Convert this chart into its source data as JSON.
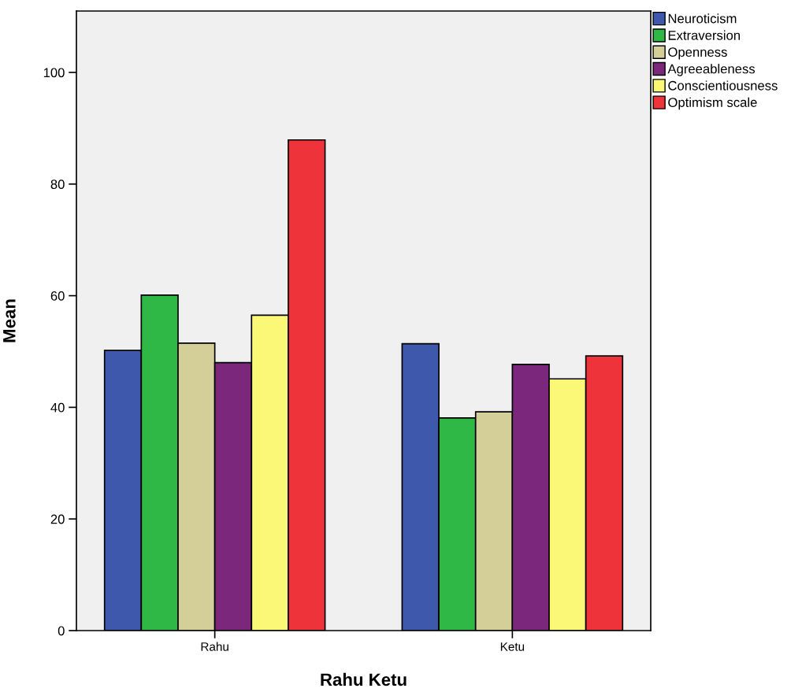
{
  "chart_data": {
    "type": "bar",
    "xlabel": "Rahu Ketu",
    "ylabel": "Mean",
    "categories": [
      "Rahu",
      "Ketu"
    ],
    "series": [
      {
        "name": "Neuroticism",
        "color": "#3e58ac",
        "values": [
          50.2,
          51.4
        ]
      },
      {
        "name": "Extraversion",
        "color": "#2fb846",
        "values": [
          60.1,
          38.1
        ]
      },
      {
        "name": "Openness",
        "color": "#d4cf98",
        "values": [
          51.5,
          39.2
        ]
      },
      {
        "name": "Agreeableness",
        "color": "#7b287c",
        "values": [
          48.0,
          47.7
        ]
      },
      {
        "name": "Conscientiousness",
        "color": "#fbf777",
        "values": [
          56.5,
          45.1
        ]
      },
      {
        "name": "Optimism scale",
        "color": "#ef333a",
        "values": [
          87.9,
          49.2
        ]
      }
    ],
    "ylim": [
      0,
      111
    ],
    "yticks": [
      0,
      20,
      40,
      60,
      80,
      100
    ],
    "grid": false,
    "legend": "top right"
  }
}
